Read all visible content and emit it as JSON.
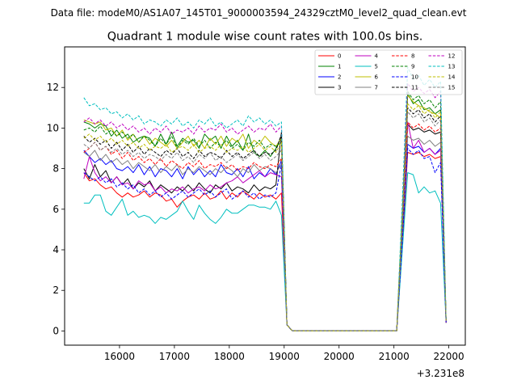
{
  "chart_data": {
    "type": "line",
    "suptitle": "Data file: modeM0/AS1A07_145T01_9000003594_24329cztM0_level2_quad_clean.evt",
    "title": "Quadrant 1 module wise count rates with 100.0s bins.",
    "xlabel": "",
    "ylabel": "",
    "x_offset_label": "+3.231e8",
    "xlim": [
      15000,
      22300
    ],
    "ylim": [
      -0.7,
      14.0
    ],
    "x_ticks": [
      16000,
      17000,
      18000,
      19000,
      20000,
      21000,
      22000
    ],
    "x_tick_labels": [
      "16000",
      "17000",
      "18000",
      "19000",
      "20000",
      "21000",
      "22000"
    ],
    "y_ticks": [
      0,
      2,
      4,
      6,
      8,
      10,
      12
    ],
    "y_tick_labels": [
      "0",
      "2",
      "4",
      "6",
      "8",
      "10",
      "12"
    ],
    "grid": false,
    "legend_position": "top-right",
    "x": [
      15350,
      15450,
      15550,
      15650,
      15750,
      15850,
      15950,
      16050,
      16150,
      16250,
      16350,
      16450,
      16550,
      16650,
      16750,
      16850,
      16950,
      17050,
      17150,
      17250,
      17350,
      17450,
      17550,
      17650,
      17750,
      17850,
      17950,
      18050,
      18150,
      18250,
      18350,
      18450,
      18550,
      18650,
      18750,
      18850,
      18950,
      19050,
      19150,
      19250,
      19350,
      19450,
      19550,
      19650,
      19750,
      19850,
      19950,
      20050,
      20150,
      20250,
      20350,
      20450,
      20550,
      20650,
      20750,
      20850,
      20950,
      21050,
      21150,
      21250,
      21350,
      21450,
      21550,
      21650,
      21750,
      21850,
      21950
    ],
    "series": [
      {
        "name": "0",
        "color": "#ff0000",
        "dash": "solid",
        "values": [
          7.8,
          7.4,
          7.5,
          7.2,
          7.0,
          7.1,
          6.8,
          6.6,
          6.8,
          6.6,
          6.7,
          6.9,
          6.6,
          6.8,
          6.7,
          6.4,
          6.5,
          6.1,
          6.4,
          6.6,
          6.7,
          6.5,
          6.8,
          6.5,
          6.6,
          6.9,
          6.5,
          6.8,
          6.6,
          6.9,
          6.7,
          6.5,
          6.8,
          6.6,
          6.7,
          6.5,
          6.8,
          0.3,
          0.0,
          0.0,
          0.0,
          0.0,
          0.0,
          0.0,
          0.0,
          0.0,
          0.0,
          0.0,
          0.0,
          0.0,
          0.0,
          0.0,
          0.0,
          0.0,
          0.0,
          0.0,
          0.0,
          0.0,
          4.1,
          8.8,
          8.7,
          8.8,
          8.6,
          8.7,
          8.5,
          8.6,
          0.4
        ]
      },
      {
        "name": "1",
        "color": "#008000",
        "dash": "solid",
        "values": [
          10.3,
          10.2,
          10.0,
          10.2,
          10.1,
          9.6,
          9.9,
          9.5,
          9.7,
          9.3,
          9.5,
          9.6,
          9.5,
          9.1,
          9.7,
          9.2,
          9.8,
          9.1,
          9.5,
          9.3,
          9.4,
          9.0,
          9.7,
          9.4,
          9.6,
          9.0,
          9.6,
          9.1,
          9.4,
          8.9,
          9.7,
          8.8,
          8.6,
          8.9,
          8.6,
          9.0,
          9.6,
          0.3,
          0.0,
          0.0,
          0.0,
          0.0,
          0.0,
          0.0,
          0.0,
          0.0,
          0.0,
          0.0,
          0.0,
          0.0,
          0.0,
          0.0,
          0.0,
          0.0,
          0.0,
          0.0,
          0.0,
          0.0,
          5.5,
          11.7,
          11.2,
          11.4,
          10.9,
          11.0,
          10.7,
          10.9,
          0.5
        ]
      },
      {
        "name": "2",
        "color": "#0000ff",
        "dash": "solid",
        "values": [
          8.9,
          8.6,
          8.3,
          8.5,
          8.2,
          8.4,
          8.0,
          7.9,
          8.1,
          7.8,
          8.2,
          7.7,
          8.1,
          7.6,
          8.0,
          7.9,
          7.6,
          8.0,
          7.5,
          8.1,
          7.7,
          8.0,
          7.6,
          7.9,
          7.6,
          8.2,
          7.8,
          7.7,
          8.0,
          7.6,
          8.1,
          7.5,
          7.8,
          7.6,
          8.0,
          7.7,
          8.4,
          0.3,
          0.0,
          0.0,
          0.0,
          0.0,
          0.0,
          0.0,
          0.0,
          0.0,
          0.0,
          0.0,
          0.0,
          0.0,
          0.0,
          0.0,
          0.0,
          0.0,
          0.0,
          0.0,
          0.0,
          0.0,
          4.5,
          9.2,
          9.0,
          9.1,
          8.8,
          9.0,
          8.7,
          9.0,
          0.4
        ]
      },
      {
        "name": "3",
        "color": "#000000",
        "dash": "solid",
        "values": [
          8.0,
          7.5,
          8.2,
          7.6,
          7.9,
          7.3,
          7.6,
          7.2,
          7.5,
          7.0,
          7.3,
          7.1,
          7.4,
          6.9,
          7.2,
          7.0,
          6.8,
          7.1,
          6.9,
          7.2,
          6.9,
          7.3,
          7.0,
          6.8,
          7.2,
          7.0,
          7.3,
          6.9,
          7.1,
          7.0,
          6.8,
          7.2,
          6.9,
          7.1,
          7.0,
          7.2,
          9.8,
          0.3,
          0.0,
          0.0,
          0.0,
          0.0,
          0.0,
          0.0,
          0.0,
          0.0,
          0.0,
          0.0,
          0.0,
          0.0,
          0.0,
          0.0,
          0.0,
          0.0,
          0.0,
          0.0,
          0.0,
          0.0,
          4.9,
          10.2,
          9.9,
          10.0,
          9.8,
          9.9,
          9.7,
          9.8,
          0.5
        ]
      },
      {
        "name": "4",
        "color": "#bf00bf",
        "dash": "solid",
        "values": [
          7.5,
          8.6,
          7.8,
          7.4,
          7.6,
          7.3,
          7.6,
          7.2,
          7.3,
          7.0,
          7.4,
          7.2,
          7.3,
          6.9,
          7.1,
          6.8,
          7.0,
          6.9,
          7.1,
          6.8,
          7.0,
          7.1,
          6.9,
          7.2,
          7.0,
          7.1,
          7.3,
          7.4,
          7.6,
          7.3,
          7.5,
          7.7,
          7.9,
          7.6,
          7.8,
          7.7,
          7.6,
          0.3,
          0.0,
          0.0,
          0.0,
          0.0,
          0.0,
          0.0,
          0.0,
          0.0,
          0.0,
          0.0,
          0.0,
          0.0,
          0.0,
          0.0,
          0.0,
          0.0,
          0.0,
          0.0,
          0.0,
          0.0,
          4.7,
          10.3,
          9.0,
          9.4,
          8.8,
          9.0,
          8.7,
          8.9,
          0.4
        ]
      },
      {
        "name": "5",
        "color": "#00bfbf",
        "dash": "solid",
        "values": [
          6.3,
          6.3,
          6.7,
          6.7,
          5.9,
          5.7,
          6.1,
          6.5,
          5.7,
          5.9,
          5.6,
          5.7,
          5.6,
          5.3,
          5.6,
          5.5,
          5.7,
          5.9,
          6.4,
          5.9,
          5.5,
          6.2,
          5.8,
          5.5,
          5.3,
          5.6,
          6.0,
          5.8,
          5.8,
          6.0,
          6.2,
          6.2,
          6.1,
          6.1,
          6.0,
          6.4,
          5.7,
          0.3,
          0.0,
          0.0,
          0.0,
          0.0,
          0.0,
          0.0,
          0.0,
          0.0,
          0.0,
          0.0,
          0.0,
          0.0,
          0.0,
          0.0,
          0.0,
          0.0,
          0.0,
          0.0,
          0.0,
          0.0,
          3.9,
          7.8,
          7.7,
          6.8,
          7.1,
          6.8,
          6.9,
          6.3,
          0.4
        ]
      },
      {
        "name": "6",
        "color": "#bfbf00",
        "dash": "solid",
        "values": [
          10.4,
          10.3,
          10.2,
          10.3,
          9.9,
          10.0,
          9.6,
          9.9,
          9.4,
          9.7,
          9.3,
          9.6,
          9.2,
          9.5,
          9.3,
          9.1,
          9.4,
          9.0,
          9.3,
          9.6,
          9.1,
          9.4,
          9.0,
          9.5,
          9.2,
          9.6,
          9.1,
          9.5,
          9.3,
          9.7,
          9.0,
          9.4,
          9.2,
          9.6,
          9.3,
          9.1,
          9.5,
          0.3,
          0.0,
          0.0,
          0.0,
          0.0,
          0.0,
          0.0,
          0.0,
          0.0,
          0.0,
          0.0,
          0.0,
          0.0,
          0.0,
          0.0,
          0.0,
          0.0,
          0.0,
          0.0,
          0.0,
          0.0,
          5.6,
          11.6,
          11.3,
          11.1,
          11.0,
          10.8,
          10.7,
          10.5,
          0.5
        ]
      },
      {
        "name": "7",
        "color": "#808080",
        "dash": "solid",
        "values": [
          8.8,
          8.6,
          8.9,
          8.4,
          8.7,
          8.3,
          8.5,
          8.2,
          8.4,
          8.0,
          8.3,
          8.1,
          7.9,
          8.2,
          7.8,
          8.1,
          7.9,
          8.2,
          7.7,
          8.0,
          7.8,
          8.1,
          7.9,
          7.7,
          8.0,
          7.8,
          8.1,
          7.9,
          7.6,
          8.0,
          7.8,
          8.2,
          7.9,
          8.1,
          8.0,
          7.8,
          8.2,
          0.3,
          0.0,
          0.0,
          0.0,
          0.0,
          0.0,
          0.0,
          0.0,
          0.0,
          0.0,
          0.0,
          0.0,
          0.0,
          0.0,
          0.0,
          0.0,
          0.0,
          0.0,
          0.0,
          0.0,
          0.0,
          4.6,
          9.6,
          9.4,
          9.5,
          9.2,
          9.4,
          9.1,
          9.3,
          0.4
        ]
      },
      {
        "name": "8",
        "color": "#ff0000",
        "dash": "dashed",
        "values": [
          8.8,
          9.0,
          9.3,
          8.9,
          9.1,
          8.7,
          8.9,
          8.5,
          8.8,
          8.4,
          8.6,
          8.3,
          8.5,
          8.2,
          8.5,
          8.1,
          8.4,
          8.2,
          8.0,
          8.3,
          8.1,
          8.4,
          8.0,
          8.2,
          8.1,
          8.3,
          8.0,
          8.2,
          7.9,
          8.1,
          8.0,
          8.3,
          8.1,
          8.0,
          8.2,
          8.1,
          8.5,
          0.3,
          0.0,
          0.0,
          0.0,
          0.0,
          0.0,
          0.0,
          0.0,
          0.0,
          0.0,
          0.0,
          0.0,
          0.0,
          0.0,
          0.0,
          0.0,
          0.0,
          0.0,
          0.0,
          0.0,
          0.0,
          5.0,
          10.3,
          10.0,
          10.2,
          9.9,
          10.1,
          9.8,
          10.0,
          0.4
        ]
      },
      {
        "name": "9",
        "color": "#008000",
        "dash": "dashed",
        "values": [
          9.9,
          10.0,
          9.8,
          10.1,
          9.7,
          9.9,
          9.6,
          9.8,
          9.5,
          9.7,
          9.3,
          9.6,
          9.4,
          9.1,
          9.5,
          9.2,
          9.6,
          9.0,
          9.4,
          9.2,
          9.5,
          9.1,
          9.4,
          9.0,
          9.3,
          9.1,
          9.4,
          9.0,
          9.2,
          8.9,
          9.3,
          9.1,
          9.4,
          9.0,
          9.2,
          9.1,
          9.3,
          0.3,
          0.0,
          0.0,
          0.0,
          0.0,
          0.0,
          0.0,
          0.0,
          0.0,
          0.0,
          0.0,
          0.0,
          0.0,
          0.0,
          0.0,
          0.0,
          0.0,
          0.0,
          0.0,
          0.0,
          0.0,
          5.7,
          11.8,
          11.4,
          11.6,
          11.2,
          11.4,
          11.0,
          11.3,
          0.5
        ]
      },
      {
        "name": "10",
        "color": "#0000ff",
        "dash": "dashed",
        "values": [
          7.8,
          7.6,
          7.4,
          7.6,
          7.3,
          7.5,
          7.1,
          7.3,
          7.0,
          7.2,
          6.8,
          7.0,
          6.7,
          6.9,
          6.6,
          6.8,
          6.5,
          6.7,
          6.9,
          6.6,
          6.8,
          7.0,
          6.7,
          6.9,
          6.6,
          6.8,
          7.0,
          6.5,
          6.7,
          6.9,
          6.6,
          6.8,
          6.5,
          6.7,
          6.6,
          6.8,
          8.2,
          0.3,
          0.0,
          0.0,
          0.0,
          0.0,
          0.0,
          0.0,
          0.0,
          0.0,
          0.0,
          0.0,
          0.0,
          0.0,
          0.0,
          0.0,
          0.0,
          0.0,
          0.0,
          0.0,
          0.0,
          0.0,
          4.4,
          9.0,
          8.7,
          8.9,
          8.5,
          8.6,
          7.8,
          8.3,
          0.4
        ]
      },
      {
        "name": "11",
        "color": "#000000",
        "dash": "dashed",
        "values": [
          9.6,
          9.3,
          9.5,
          9.2,
          9.4,
          9.0,
          9.3,
          8.9,
          9.2,
          8.8,
          9.1,
          8.7,
          9.0,
          8.8,
          8.6,
          8.9,
          8.7,
          9.0,
          8.6,
          8.8,
          8.5,
          8.9,
          8.6,
          8.8,
          8.7,
          8.5,
          8.9,
          8.6,
          8.8,
          8.5,
          8.7,
          8.9,
          8.6,
          8.8,
          8.7,
          8.9,
          9.7,
          0.3,
          0.0,
          0.0,
          0.0,
          0.0,
          0.0,
          0.0,
          0.0,
          0.0,
          0.0,
          0.0,
          0.0,
          0.0,
          0.0,
          0.0,
          0.0,
          0.0,
          0.0,
          0.0,
          0.0,
          0.0,
          5.3,
          11.0,
          10.7,
          10.9,
          10.5,
          10.7,
          10.3,
          10.6,
          0.5
        ]
      },
      {
        "name": "12",
        "color": "#bf00bf",
        "dash": "dashed",
        "values": [
          10.3,
          10.5,
          10.2,
          10.4,
          10.1,
          10.3,
          10.0,
          10.2,
          9.9,
          10.1,
          9.8,
          10.0,
          9.7,
          10.0,
          9.8,
          10.1,
          9.7,
          9.9,
          9.8,
          10.0,
          9.7,
          10.1,
          9.8,
          10.0,
          9.9,
          10.2,
          9.8,
          10.0,
          9.7,
          9.9,
          10.1,
          9.8,
          10.0,
          9.9,
          10.2,
          9.8,
          10.1,
          0.3,
          0.0,
          0.0,
          0.0,
          0.0,
          0.0,
          0.0,
          0.0,
          0.0,
          0.0,
          0.0,
          0.0,
          0.0,
          0.0,
          0.0,
          0.0,
          0.0,
          0.0,
          0.0,
          0.0,
          0.0,
          5.9,
          12.2,
          11.8,
          12.0,
          11.7,
          11.9,
          11.5,
          11.8,
          0.5
        ]
      },
      {
        "name": "13",
        "color": "#00bfbf",
        "dash": "dashed",
        "values": [
          11.5,
          11.1,
          11.2,
          10.9,
          11.0,
          10.7,
          10.8,
          10.5,
          10.7,
          10.4,
          10.6,
          10.2,
          10.4,
          10.3,
          10.1,
          10.4,
          10.2,
          10.5,
          10.1,
          10.3,
          10.0,
          10.4,
          10.2,
          10.5,
          10.1,
          10.3,
          10.0,
          10.2,
          10.4,
          10.1,
          10.6,
          10.3,
          10.5,
          10.2,
          10.4,
          10.1,
          10.3,
          0.3,
          0.0,
          0.0,
          0.0,
          0.0,
          0.0,
          0.0,
          0.0,
          0.0,
          0.0,
          0.0,
          0.0,
          0.0,
          0.0,
          0.0,
          0.0,
          0.0,
          0.0,
          0.0,
          0.0,
          0.0,
          6.3,
          13.0,
          12.4,
          12.6,
          12.1,
          12.4,
          12.0,
          12.3,
          0.6
        ]
      },
      {
        "name": "14",
        "color": "#bfbf00",
        "dash": "dashed",
        "values": [
          9.5,
          9.7,
          9.4,
          9.6,
          9.3,
          9.5,
          9.2,
          9.4,
          9.1,
          9.3,
          9.0,
          9.2,
          8.9,
          9.1,
          9.0,
          9.2,
          8.8,
          9.0,
          9.1,
          8.9,
          9.2,
          8.8,
          9.0,
          9.1,
          8.9,
          9.2,
          8.8,
          9.0,
          8.9,
          9.1,
          8.8,
          9.0,
          9.2,
          8.9,
          9.1,
          8.8,
          9.3,
          0.3,
          0.0,
          0.0,
          0.0,
          0.0,
          0.0,
          0.0,
          0.0,
          0.0,
          0.0,
          0.0,
          0.0,
          0.0,
          0.0,
          0.0,
          0.0,
          0.0,
          0.0,
          0.0,
          0.0,
          0.0,
          5.4,
          11.2,
          10.9,
          11.1,
          10.7,
          10.9,
          10.5,
          10.8,
          0.5
        ]
      },
      {
        "name": "15",
        "color": "#808080",
        "dash": "dashed",
        "values": [
          9.2,
          9.0,
          9.3,
          8.9,
          9.1,
          8.8,
          9.0,
          8.7,
          8.9,
          8.6,
          8.8,
          8.5,
          8.7,
          8.6,
          8.4,
          8.7,
          8.5,
          8.8,
          8.4,
          8.6,
          8.3,
          8.7,
          8.5,
          8.8,
          8.4,
          8.6,
          8.3,
          8.5,
          8.7,
          8.4,
          8.6,
          8.8,
          8.5,
          8.7,
          8.4,
          8.6,
          8.9,
          0.3,
          0.0,
          0.0,
          0.0,
          0.0,
          0.0,
          0.0,
          0.0,
          0.0,
          0.0,
          0.0,
          0.0,
          0.0,
          0.0,
          0.0,
          0.0,
          0.0,
          0.0,
          0.0,
          0.0,
          0.0,
          5.2,
          10.8,
          10.5,
          10.7,
          10.3,
          10.5,
          10.1,
          10.4,
          0.5
        ]
      }
    ]
  }
}
